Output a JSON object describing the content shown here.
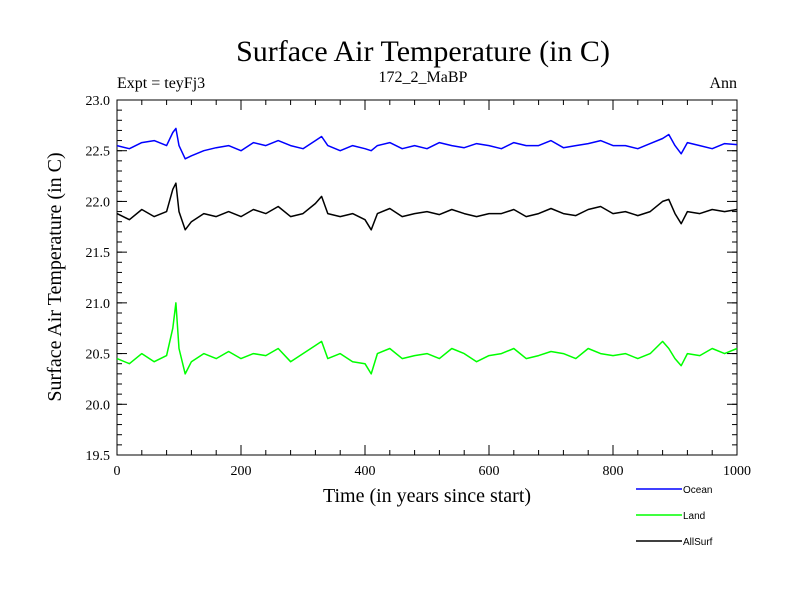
{
  "chart_data": {
    "type": "line",
    "title": "Surface Air Temperature (in C)",
    "subtitle": "172_2_MaBP",
    "left_label": "Expt = teyFj3",
    "right_label": "Ann",
    "xlabel": "Time (in years since start)",
    "ylabel": "Surface Air Temperature (in C)",
    "xlim": [
      0,
      1000
    ],
    "ylim": [
      19.5,
      23.0
    ],
    "xticks": [
      0,
      200,
      400,
      600,
      800,
      1000
    ],
    "xtick_labels": [
      "0",
      "200",
      "400",
      "600",
      "800",
      "1000"
    ],
    "yticks": [
      19.5,
      20.0,
      20.5,
      21.0,
      21.5,
      22.0,
      22.5,
      23.0
    ],
    "ytick_labels": [
      "19.5",
      "20.0",
      "20.5",
      "21.0",
      "21.5",
      "22.0",
      "22.5",
      "23.0"
    ],
    "grid": false,
    "legend_position": "bottom-right, outside plot",
    "x": [
      0,
      20,
      40,
      60,
      80,
      90,
      95,
      100,
      110,
      120,
      140,
      160,
      180,
      200,
      220,
      240,
      260,
      280,
      300,
      320,
      330,
      340,
      360,
      380,
      400,
      410,
      420,
      440,
      460,
      480,
      500,
      520,
      540,
      560,
      580,
      600,
      620,
      640,
      660,
      680,
      700,
      720,
      740,
      760,
      780,
      800,
      820,
      840,
      860,
      880,
      890,
      900,
      910,
      920,
      940,
      960,
      980,
      1000
    ],
    "series": [
      {
        "name": "Ocean",
        "color": "#0000ff",
        "values": [
          22.55,
          22.52,
          22.58,
          22.6,
          22.55,
          22.68,
          22.72,
          22.55,
          22.42,
          22.45,
          22.5,
          22.53,
          22.55,
          22.5,
          22.58,
          22.55,
          22.6,
          22.55,
          22.52,
          22.6,
          22.64,
          22.55,
          22.5,
          22.55,
          22.52,
          22.5,
          22.55,
          22.58,
          22.52,
          22.55,
          22.52,
          22.58,
          22.55,
          22.53,
          22.57,
          22.55,
          22.52,
          22.58,
          22.55,
          22.55,
          22.6,
          22.53,
          22.55,
          22.57,
          22.6,
          22.55,
          22.55,
          22.52,
          22.57,
          22.62,
          22.66,
          22.55,
          22.47,
          22.58,
          22.55,
          22.52,
          22.57,
          22.56
        ]
      },
      {
        "name": "Land",
        "color": "#00ff00",
        "values": [
          20.45,
          20.4,
          20.5,
          20.42,
          20.48,
          20.75,
          21.0,
          20.55,
          20.3,
          20.42,
          20.5,
          20.45,
          20.52,
          20.45,
          20.5,
          20.48,
          20.55,
          20.42,
          20.5,
          20.58,
          20.62,
          20.45,
          20.5,
          20.42,
          20.4,
          20.3,
          20.5,
          20.55,
          20.45,
          20.48,
          20.5,
          20.45,
          20.55,
          20.5,
          20.42,
          20.48,
          20.5,
          20.55,
          20.45,
          20.48,
          20.52,
          20.5,
          20.45,
          20.55,
          20.5,
          20.48,
          20.5,
          20.45,
          20.5,
          20.62,
          20.55,
          20.45,
          20.38,
          20.5,
          20.48,
          20.55,
          20.5,
          20.55
        ]
      },
      {
        "name": "AllSurf",
        "color": "#000000",
        "values": [
          21.88,
          21.82,
          21.92,
          21.85,
          21.9,
          22.12,
          22.18,
          21.9,
          21.72,
          21.8,
          21.88,
          21.85,
          21.9,
          21.85,
          21.92,
          21.88,
          21.95,
          21.85,
          21.88,
          21.98,
          22.05,
          21.88,
          21.85,
          21.88,
          21.82,
          21.72,
          21.88,
          21.93,
          21.85,
          21.88,
          21.9,
          21.87,
          21.92,
          21.88,
          21.85,
          21.88,
          21.88,
          21.92,
          21.85,
          21.88,
          21.93,
          21.88,
          21.86,
          21.92,
          21.95,
          21.88,
          21.9,
          21.86,
          21.9,
          22.0,
          22.02,
          21.88,
          21.78,
          21.9,
          21.88,
          21.92,
          21.9,
          21.92
        ]
      }
    ]
  }
}
